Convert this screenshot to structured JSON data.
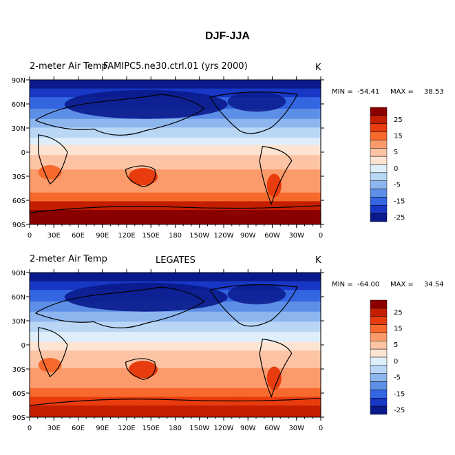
{
  "title": "DJF-JJA",
  "chart_data": [
    {
      "type": "heatmap",
      "left_label": "2-meter Air Temp",
      "center_label": "FAMIPC5.ne30.ctrl.01 (yrs 2000)",
      "units": "K",
      "min_label": "MIN =",
      "min_value": "-54.41",
      "max_label": "MAX =",
      "max_value": "38.53",
      "x_ticks": [
        "0",
        "30E",
        "60E",
        "90E",
        "120E",
        "150E",
        "180",
        "150W",
        "120W",
        "90W",
        "60W",
        "30W",
        "0"
      ],
      "y_ticks": [
        "90N",
        "60N",
        "30N",
        "0",
        "30S",
        "60S",
        "90S"
      ],
      "xlim": [
        0,
        360
      ],
      "ylim": [
        -90,
        90
      ],
      "colorbar_labels": [
        "25",
        "15",
        "5",
        "0",
        "-5",
        "-15",
        "-25"
      ]
    },
    {
      "type": "heatmap",
      "left_label": "2-meter Air Temp",
      "center_label": "LEGATES",
      "units": "K",
      "min_label": "MIN =",
      "min_value": "-64.00",
      "max_label": "MAX =",
      "max_value": "34.54",
      "x_ticks": [
        "0",
        "30E",
        "60E",
        "90E",
        "120E",
        "150E",
        "180",
        "150W",
        "120W",
        "90W",
        "60W",
        "30W",
        "0"
      ],
      "y_ticks": [
        "90N",
        "60N",
        "30N",
        "0",
        "30S",
        "60S",
        "90S"
      ],
      "xlim": [
        0,
        360
      ],
      "ylim": [
        -90,
        90
      ],
      "colorbar_labels": [
        "25",
        "15",
        "5",
        "0",
        "-5",
        "-15",
        "-25"
      ]
    }
  ],
  "colors": {
    "scale": [
      "#8a0000",
      "#c41e00",
      "#e83c0e",
      "#f7692c",
      "#fb9a6a",
      "#fcc4a4",
      "#fde4d2",
      "#deeefa",
      "#b9d6f5",
      "#8db5ee",
      "#5d8fe6",
      "#3366e0",
      "#1737c4",
      "#0a1a8c"
    ]
  }
}
